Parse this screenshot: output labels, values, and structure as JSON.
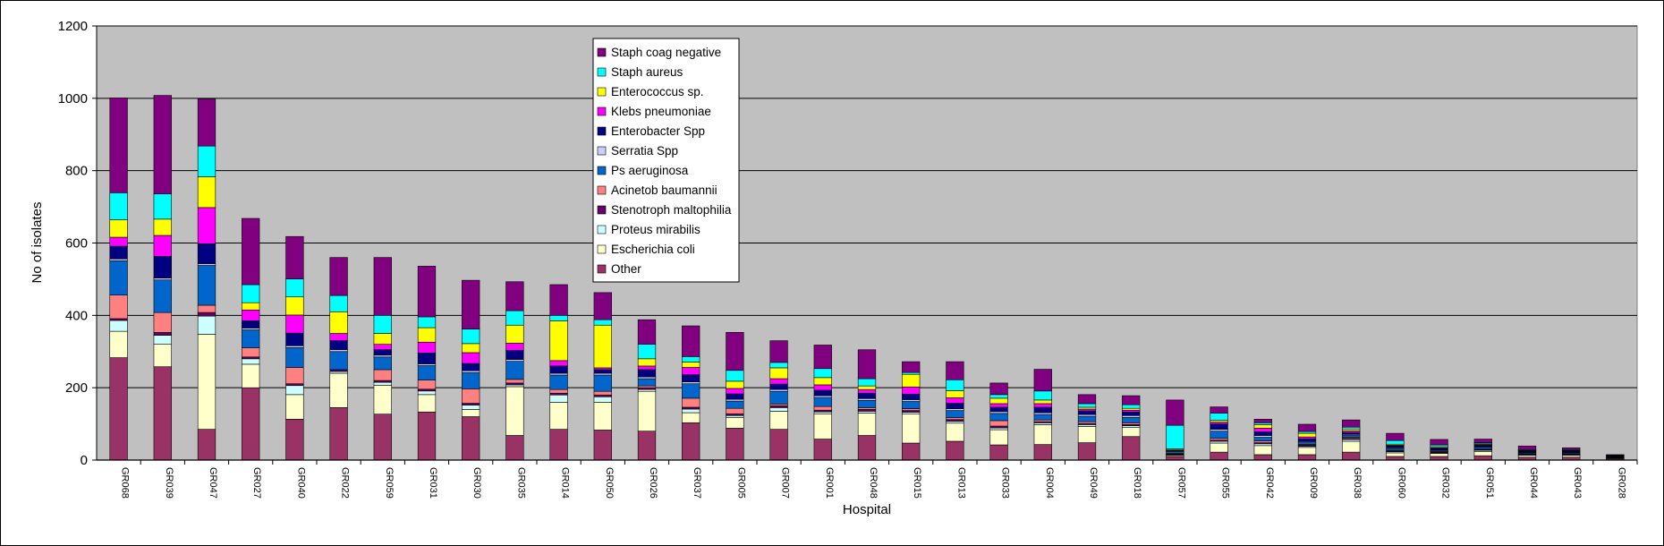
{
  "chart_data": {
    "type": "bar",
    "stacked": true,
    "xlabel": "Hospital",
    "ylabel": "No of isolates",
    "ylim": [
      0,
      1200
    ],
    "yticks": [
      0,
      200,
      400,
      600,
      800,
      1000,
      1200
    ],
    "grid": "horizontal",
    "legend_position": "top-center",
    "plot_background": "#C0C0C0",
    "categories": [
      "GR068",
      "GR039",
      "GR047",
      "GR027",
      "GR040",
      "GR022",
      "GR059",
      "GR031",
      "GR030",
      "GR035",
      "GR014",
      "GR050",
      "GR026",
      "GR037",
      "GR005",
      "GR007",
      "GR001",
      "GR048",
      "GR015",
      "GR013",
      "GR033",
      "GR004",
      "GR049",
      "GR018",
      "GR057",
      "GR055",
      "GR042",
      "GR009",
      "GR038",
      "GR060",
      "GR032",
      "GR051",
      "GR044",
      "GR043",
      "GR028"
    ],
    "series": [
      {
        "name": "Other",
        "color": "#993366",
        "values": [
          283,
          258,
          85,
          200,
          113,
          145,
          127,
          133,
          120,
          68,
          85,
          83,
          80,
          103,
          88,
          85,
          58,
          68,
          47,
          52,
          42,
          43,
          48,
          65,
          10,
          22,
          15,
          15,
          22,
          10,
          10,
          12,
          8,
          8,
          3
        ]
      },
      {
        "name": "Escherichia coli",
        "color": "#FFFFCC",
        "values": [
          73,
          62,
          263,
          65,
          68,
          95,
          80,
          48,
          20,
          135,
          75,
          77,
          110,
          28,
          30,
          50,
          70,
          62,
          80,
          50,
          42,
          55,
          45,
          25,
          3,
          25,
          25,
          20,
          30,
          10,
          8,
          12,
          5,
          5,
          2
        ]
      },
      {
        "name": "Proteus mirabilis",
        "color": "#CCFFFF",
        "values": [
          30,
          25,
          50,
          15,
          25,
          5,
          8,
          10,
          12,
          5,
          20,
          15,
          5,
          10,
          5,
          10,
          5,
          5,
          5,
          5,
          5,
          5,
          5,
          5,
          2,
          5,
          5,
          3,
          5,
          3,
          2,
          3,
          2,
          2,
          1
        ]
      },
      {
        "name": "Stenotroph maltophilia",
        "color": "#660066",
        "values": [
          5,
          8,
          10,
          5,
          5,
          5,
          5,
          5,
          5,
          5,
          5,
          5,
          5,
          5,
          5,
          5,
          5,
          5,
          5,
          5,
          5,
          3,
          3,
          3,
          2,
          3,
          3,
          3,
          3,
          2,
          2,
          2,
          2,
          2,
          1
        ]
      },
      {
        "name": "Acinetob baumannii",
        "color": "#FF8080",
        "values": [
          65,
          55,
          20,
          25,
          45,
          0,
          30,
          25,
          40,
          10,
          10,
          10,
          5,
          25,
          15,
          5,
          10,
          5,
          5,
          5,
          15,
          5,
          5,
          5,
          2,
          5,
          5,
          2,
          3,
          2,
          2,
          2,
          1,
          1,
          1
        ]
      },
      {
        "name": "Ps aeruginosa",
        "color": "#0066CC",
        "values": [
          95,
          90,
          110,
          50,
          55,
          50,
          35,
          40,
          45,
          50,
          40,
          45,
          20,
          40,
          20,
          35,
          25,
          20,
          20,
          20,
          20,
          15,
          15,
          15,
          5,
          20,
          10,
          5,
          5,
          5,
          3,
          5,
          3,
          3,
          1
        ]
      },
      {
        "name": "Serratia Spp",
        "color": "#CCCCFF",
        "values": [
          5,
          5,
          5,
          5,
          5,
          5,
          5,
          5,
          5,
          5,
          5,
          5,
          5,
          5,
          5,
          5,
          5,
          5,
          5,
          5,
          5,
          5,
          5,
          5,
          1,
          5,
          5,
          3,
          3,
          2,
          1,
          1,
          1,
          1,
          1
        ]
      },
      {
        "name": "Enterobacter Spp",
        "color": "#000080",
        "values": [
          35,
          60,
          55,
          20,
          35,
          25,
          15,
          30,
          20,
          25,
          20,
          10,
          20,
          20,
          15,
          15,
          15,
          15,
          15,
          15,
          12,
          15,
          10,
          10,
          2,
          15,
          10,
          8,
          5,
          5,
          4,
          4,
          3,
          3,
          2
        ]
      },
      {
        "name": "Klebs pneumoniae",
        "color": "#FF00FF",
        "values": [
          25,
          58,
          100,
          30,
          50,
          20,
          15,
          30,
          30,
          20,
          15,
          5,
          10,
          20,
          15,
          15,
          15,
          10,
          20,
          15,
          10,
          10,
          5,
          5,
          1,
          5,
          10,
          5,
          5,
          2,
          2,
          2,
          1,
          1,
          1
        ]
      },
      {
        "name": "Enterococcus sp.",
        "color": "#FFFF00",
        "values": [
          48,
          45,
          85,
          20,
          50,
          60,
          30,
          40,
          25,
          50,
          110,
          118,
          20,
          15,
          20,
          30,
          20,
          10,
          35,
          20,
          15,
          10,
          5,
          5,
          3,
          5,
          10,
          10,
          5,
          3,
          3,
          2,
          1,
          1,
          1
        ]
      },
      {
        "name": "Staph aureus",
        "color": "#00FFFF",
        "values": [
          75,
          70,
          85,
          50,
          50,
          45,
          50,
          30,
          40,
          40,
          15,
          15,
          40,
          15,
          30,
          15,
          25,
          20,
          5,
          30,
          10,
          25,
          10,
          10,
          65,
          20,
          5,
          5,
          5,
          10,
          5,
          3,
          2,
          2,
          1
        ]
      },
      {
        "name": "Staph coag negative",
        "color": "#800080",
        "values": [
          262,
          272,
          130,
          183,
          117,
          105,
          160,
          140,
          135,
          80,
          85,
          75,
          68,
          85,
          105,
          60,
          65,
          80,
          30,
          50,
          32,
          60,
          25,
          25,
          70,
          17,
          10,
          20,
          20,
          20,
          15,
          10,
          10,
          5,
          0
        ]
      }
    ]
  }
}
